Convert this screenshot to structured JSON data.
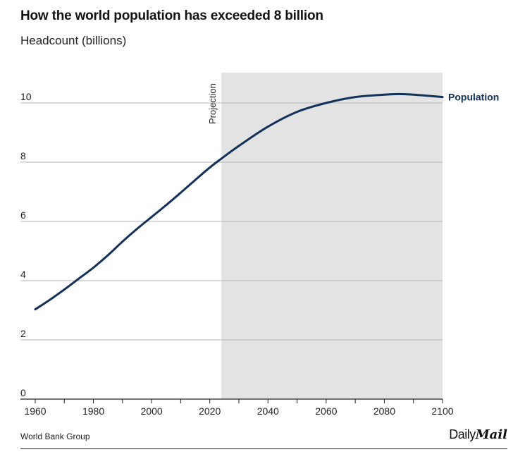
{
  "chart_data": {
    "type": "line",
    "title": "How the world population has exceeded 8 billion",
    "subtitle": "Headcount (billions)",
    "xlabel": "",
    "ylabel": "Headcount (billions)",
    "xlim": [
      1960,
      2100
    ],
    "ylim": [
      0,
      10.5
    ],
    "x_ticks": [
      1960,
      1980,
      2000,
      2020,
      2040,
      2060,
      2080,
      2100
    ],
    "y_ticks": [
      0,
      2,
      4,
      6,
      8,
      10
    ],
    "grid": true,
    "shaded_region": {
      "label": "Projection",
      "x_start": 2024,
      "x_end": 2100
    },
    "series": [
      {
        "name": "Population",
        "color": "#12315a",
        "x": [
          1960,
          1965,
          1970,
          1975,
          1980,
          1985,
          1990,
          1995,
          2000,
          2005,
          2010,
          2015,
          2020,
          2024,
          2030,
          2040,
          2050,
          2060,
          2070,
          2080,
          2085,
          2090,
          2100
        ],
        "values": [
          3.03,
          3.35,
          3.7,
          4.07,
          4.44,
          4.86,
          5.32,
          5.75,
          6.15,
          6.55,
          6.97,
          7.4,
          7.82,
          8.12,
          8.55,
          9.2,
          9.7,
          10.0,
          10.2,
          10.28,
          10.3,
          10.28,
          10.2
        ]
      }
    ]
  },
  "source": "World Bank Group",
  "brand": {
    "light": "Daily",
    "bold": "Mail"
  },
  "colors": {
    "line": "#12315a",
    "projection_band": "#e3e3e3",
    "grid": "#b4b4b4",
    "axis": "#222222"
  }
}
